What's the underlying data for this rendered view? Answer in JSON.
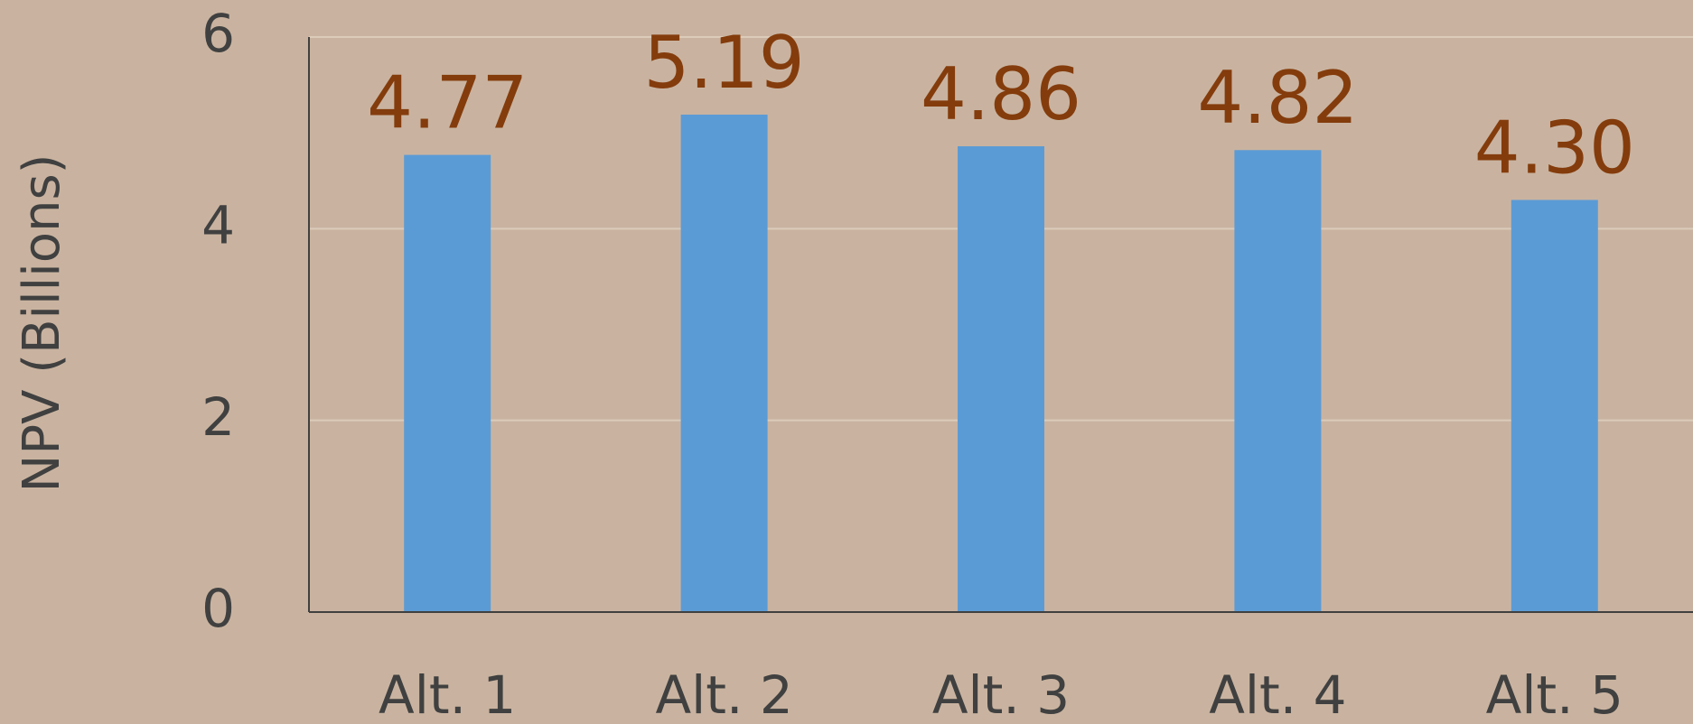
{
  "chart_data": {
    "type": "bar",
    "y_axis_label": "NPV (Billions)",
    "categories": [
      "Alt. 1",
      "Alt. 2",
      "Alt. 3",
      "Alt. 4",
      "Alt. 5"
    ],
    "values": [
      4.77,
      5.19,
      4.86,
      4.82,
      4.3
    ],
    "value_labels": [
      "4.77",
      "5.19",
      "4.86",
      "4.82",
      "4.30"
    ],
    "color": "#5b9bd5",
    "ylim": [
      0,
      6
    ],
    "yticks": [
      0,
      2,
      4,
      6
    ],
    "grid": true
  }
}
